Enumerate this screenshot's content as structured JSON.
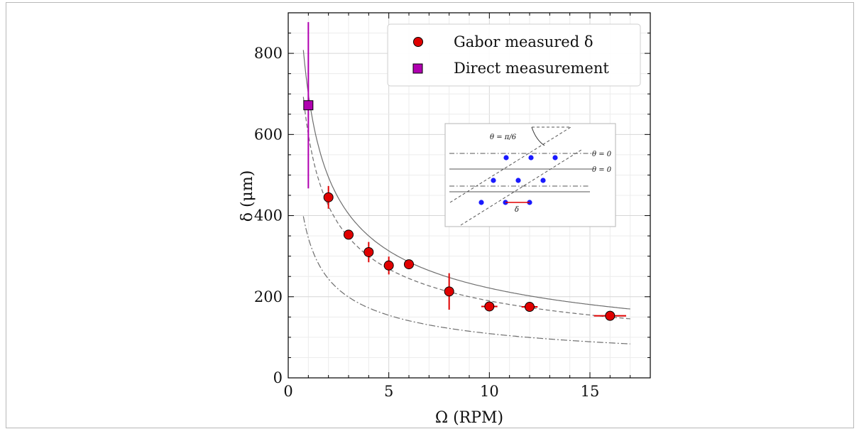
{
  "chart_data": {
    "type": "scatter",
    "xlabel": "Ω (RPM)",
    "ylabel": "δ (μm)",
    "xlim": [
      0,
      18
    ],
    "ylim": [
      0,
      900
    ],
    "xticks": [
      0,
      5,
      10,
      15
    ],
    "yticks": [
      0,
      200,
      400,
      600,
      800
    ],
    "xtick_labels": [
      "0",
      "5",
      "10",
      "15"
    ],
    "ytick_labels": [
      "0",
      "200",
      "400",
      "600",
      "800"
    ],
    "grid": true,
    "legend_position": "top-right",
    "series": [
      {
        "name": "Gabor measured δ",
        "marker": "circle",
        "color": "#e00000",
        "x": [
          2,
          3,
          4,
          5,
          6,
          8,
          10,
          12,
          16
        ],
        "y": [
          445,
          353,
          310,
          277,
          280,
          213,
          176,
          175,
          153
        ],
        "yerr": [
          28,
          10,
          25,
          22,
          8,
          45,
          8,
          8,
          5
        ],
        "xerr": [
          0,
          0,
          0,
          0,
          0,
          0,
          0.4,
          0.4,
          0.8
        ]
      },
      {
        "name": "Direct measurement",
        "marker": "square",
        "color": "#b000b0",
        "x": [
          1
        ],
        "y": [
          672
        ],
        "yerr": [
          205
        ]
      }
    ],
    "curves": [
      {
        "style": "solid",
        "color": "#6e6e6e",
        "x_range": [
          0.75,
          17
        ],
        "k": 700,
        "p": 0.5
      },
      {
        "style": "dashed",
        "color": "#6e6e6e",
        "x_range": [
          0.75,
          17
        ],
        "k": 600,
        "p": 0.5
      },
      {
        "style": "dashdot",
        "color": "#6e6e6e",
        "x_range": [
          0.75,
          17
        ],
        "k": 345,
        "p": 0.5
      }
    ],
    "inset": {
      "theta_label": "θ = π/6",
      "line_labels": [
        "θ = 0",
        "θ = 0"
      ],
      "spacing_label": "δ",
      "dot_color": "#1a1aff",
      "bar_color": "#e00000"
    }
  }
}
